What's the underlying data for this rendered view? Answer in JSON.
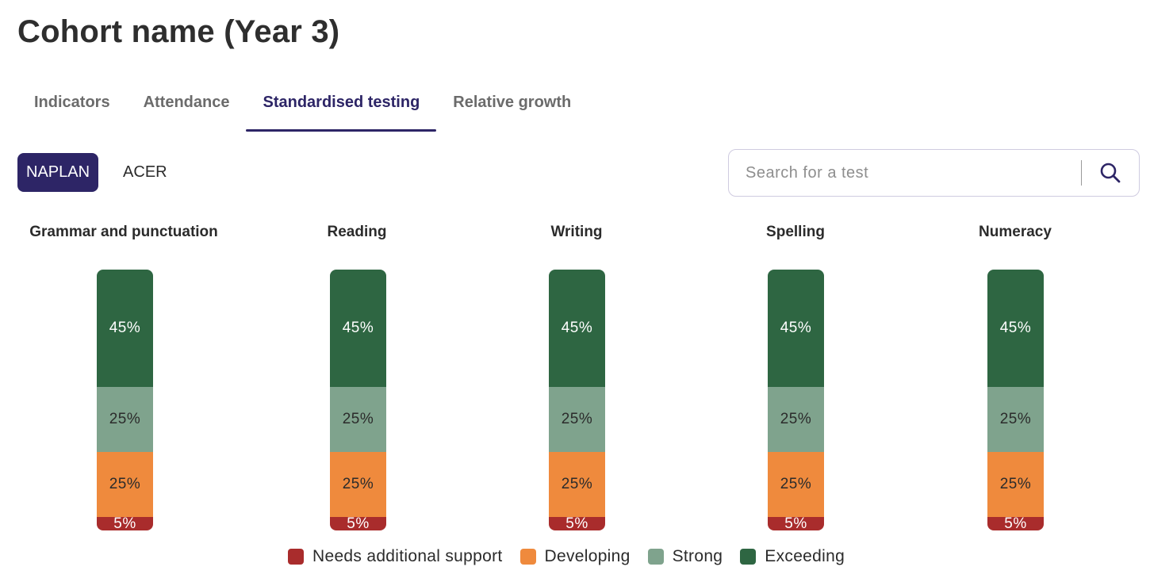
{
  "page": {
    "title": "Cohort name (Year 3)"
  },
  "tabs": [
    {
      "label": "Indicators",
      "active": false
    },
    {
      "label": "Attendance",
      "active": false
    },
    {
      "label": "Standardised testing",
      "active": true
    },
    {
      "label": "Relative growth",
      "active": false
    }
  ],
  "test_types": [
    {
      "label": "NAPLAN",
      "active": true
    },
    {
      "label": "ACER",
      "active": false
    }
  ],
  "search": {
    "placeholder": "Search for a test",
    "icon": "search-icon"
  },
  "colors": {
    "exceeding": "#2e6642",
    "strong": "#7fa38d",
    "developing": "#ef8a3d",
    "support": "#a92c2c",
    "accent": "#2d2566"
  },
  "chart_data": {
    "type": "bar",
    "stacked": true,
    "categories": [
      "Grammar and punctuation",
      "Reading",
      "Writing",
      "Spelling",
      "Numeracy"
    ],
    "series": [
      {
        "name": "Needs additional support",
        "values": [
          5,
          5,
          5,
          5,
          5
        ],
        "labels": [
          "5%",
          "5%",
          "5%",
          "5%",
          "5%"
        ]
      },
      {
        "name": "Developing",
        "values": [
          25,
          25,
          25,
          25,
          25
        ],
        "labels": [
          "25%",
          "25%",
          "25%",
          "25%",
          "25%"
        ]
      },
      {
        "name": "Strong",
        "values": [
          25,
          25,
          25,
          25,
          25
        ],
        "labels": [
          "25%",
          "25%",
          "25%",
          "25%",
          "25%"
        ]
      },
      {
        "name": "Exceeding",
        "values": [
          45,
          45,
          45,
          45,
          45
        ],
        "labels": [
          "45%",
          "45%",
          "45%",
          "45%",
          "45%"
        ]
      }
    ],
    "legend_position": "bottom",
    "grid": false
  }
}
